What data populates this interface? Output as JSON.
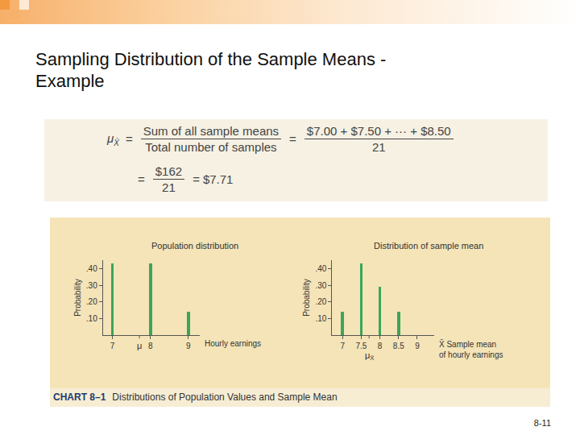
{
  "slide": {
    "title": [
      "Sampling Distribution of the Sample Means -",
      "Example"
    ],
    "page_number": "8-11"
  },
  "formula": {
    "lhs_symbol": "μ",
    "lhs_subscript": "X̄",
    "equals": "=",
    "fraction1": {
      "num": "Sum of all sample means",
      "den": "Total number of samples"
    },
    "fraction2": {
      "num": "$7.00 + $7.50 + ··· + $8.50",
      "den": "21"
    },
    "fraction3": {
      "num": "$162",
      "den": "21"
    },
    "result": "$7.71"
  },
  "figure_caption": {
    "label": "CHART 8–1",
    "text": "Distributions of Population Values and Sample Mean"
  },
  "chart_data": [
    {
      "type": "bar",
      "title": "Population distribution",
      "ylabel": "Probability",
      "xlabel": [
        "Hourly earnings"
      ],
      "x": [
        7,
        8,
        9
      ],
      "values": [
        0.43,
        0.43,
        0.14
      ],
      "color": "#3aa65a",
      "xlim": [
        6.75,
        9.3
      ],
      "ylim": [
        0,
        0.45
      ],
      "xticks": [
        7,
        8,
        9
      ],
      "yticks": [
        {
          "value": 0.1,
          "label": ".10"
        },
        {
          "value": 0.2,
          "label": ".20"
        },
        {
          "value": 0.3,
          "label": ".30"
        },
        {
          "value": 0.4,
          "label": ".40"
        }
      ],
      "mean": {
        "value": 7.71,
        "label": "μ"
      }
    },
    {
      "type": "bar",
      "title": "Distribution of sample mean",
      "ylabel": "Probability",
      "xlabel": [
        "X̄ Sample mean",
        "of hourly earnings"
      ],
      "x": [
        7,
        7.5,
        8,
        8.5
      ],
      "values": [
        0.14,
        0.43,
        0.29,
        0.14
      ],
      "color": "#3aa65a",
      "xlim": [
        6.72,
        9.45
      ],
      "ylim": [
        0,
        0.45
      ],
      "xticks": [
        7,
        7.5,
        8,
        8.5,
        9
      ],
      "yticks": [
        {
          "value": 0.1,
          "label": ".10"
        },
        {
          "value": 0.2,
          "label": ".20"
        },
        {
          "value": 0.3,
          "label": ".30"
        },
        {
          "value": 0.4,
          "label": ".40"
        }
      ],
      "mean": {
        "value": 7.71,
        "label": "μ",
        "subscript": "X̄"
      }
    }
  ]
}
